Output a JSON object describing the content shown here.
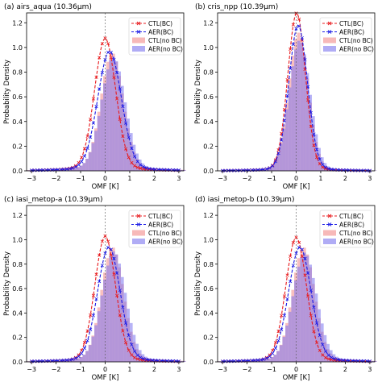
{
  "figure": {
    "x_axis_label": "OMF [K]",
    "y_axis_label": "Probability Density"
  },
  "legend_entries": [
    {
      "label": "CTL(BC)",
      "kind": "line",
      "color": "#e8191c",
      "marker": "x"
    },
    {
      "label": "AER(BC)",
      "kind": "line",
      "color": "#1a1ae6",
      "marker": "x"
    },
    {
      "label": "CTL(no BC)",
      "kind": "patch",
      "color": "#f28a8a"
    },
    {
      "label": "AER(no BC)",
      "kind": "patch",
      "color": "#7b74ee"
    }
  ],
  "chart_data": [
    {
      "type": "bar",
      "title": "(a) airs_aqua (10.36μm)",
      "xlabel": "OMF [K]",
      "ylabel": "Probability Density",
      "xlim": [
        -3.2,
        3.2
      ],
      "ylim": [
        0,
        1.28
      ],
      "xticks": [
        -3,
        -2,
        -1,
        0,
        1,
        2,
        3
      ],
      "yticks": [
        0.0,
        0.2,
        0.4,
        0.6,
        0.8,
        1.0,
        1.2
      ],
      "vline_x": 0,
      "legend_position": "top-right",
      "series": [
        {
          "name": "CTL(BC)",
          "kind": "line",
          "center": 0.0,
          "peak": 1.02,
          "width": 0.43,
          "tail": 0.055,
          "tail_width": 1.2
        },
        {
          "name": "AER(BC)",
          "kind": "line",
          "center": 0.18,
          "peak": 0.92,
          "width": 0.48,
          "tail": 0.05,
          "tail_width": 1.3
        },
        {
          "name": "CTL(no BC)",
          "kind": "hist",
          "center": 0.28,
          "peak": 0.9,
          "width": 0.45,
          "tail": 0.06,
          "tail_width": 1.4
        },
        {
          "name": "AER(no BC)",
          "kind": "hist",
          "center": 0.33,
          "peak": 0.87,
          "width": 0.48,
          "tail": 0.055,
          "tail_width": 1.4
        }
      ]
    },
    {
      "type": "bar",
      "title": "(b) cris_npp (10.39μm)",
      "xlabel": "OMF [K]",
      "ylabel": "Probability Density",
      "xlim": [
        -3.2,
        3.2
      ],
      "ylim": [
        0,
        1.28
      ],
      "xticks": [
        -3,
        -2,
        -1,
        0,
        1,
        2,
        3
      ],
      "yticks": [
        0.0,
        0.2,
        0.4,
        0.6,
        0.8,
        1.0,
        1.2
      ],
      "vline_x": 0,
      "legend_position": "top-right",
      "series": [
        {
          "name": "CTL(BC)",
          "kind": "line",
          "center": 0.02,
          "peak": 1.24,
          "width": 0.36,
          "tail": 0.04,
          "tail_width": 1.0
        },
        {
          "name": "AER(BC)",
          "kind": "line",
          "center": 0.08,
          "peak": 1.14,
          "width": 0.38,
          "tail": 0.04,
          "tail_width": 1.0
        },
        {
          "name": "CTL(no BC)",
          "kind": "hist",
          "center": 0.1,
          "peak": 1.08,
          "width": 0.4,
          "tail": 0.04,
          "tail_width": 1.1
        },
        {
          "name": "AER(no BC)",
          "kind": "hist",
          "center": 0.14,
          "peak": 1.02,
          "width": 0.42,
          "tail": 0.04,
          "tail_width": 1.1
        }
      ]
    },
    {
      "type": "bar",
      "title": "(c) iasi_metop-a (10.39μm)",
      "xlabel": "OMF [K]",
      "ylabel": "Probability Density",
      "xlim": [
        -3.2,
        3.2
      ],
      "ylim": [
        0,
        1.28
      ],
      "xticks": [
        -3,
        -2,
        -1,
        0,
        1,
        2,
        3
      ],
      "yticks": [
        0.0,
        0.2,
        0.4,
        0.6,
        0.8,
        1.0,
        1.2
      ],
      "vline_x": 0,
      "legend_position": "top-right",
      "series": [
        {
          "name": "CTL(BC)",
          "kind": "line",
          "center": 0.0,
          "peak": 0.98,
          "width": 0.42,
          "tail": 0.05,
          "tail_width": 1.2
        },
        {
          "name": "AER(BC)",
          "kind": "line",
          "center": 0.15,
          "peak": 0.89,
          "width": 0.46,
          "tail": 0.05,
          "tail_width": 1.3
        },
        {
          "name": "CTL(no BC)",
          "kind": "hist",
          "center": 0.3,
          "peak": 0.88,
          "width": 0.45,
          "tail": 0.06,
          "tail_width": 1.4
        },
        {
          "name": "AER(no BC)",
          "kind": "hist",
          "center": 0.35,
          "peak": 0.85,
          "width": 0.48,
          "tail": 0.055,
          "tail_width": 1.4
        }
      ]
    },
    {
      "type": "bar",
      "title": "(d) iasi_metop-b (10.39μm)",
      "xlabel": "OMF [K]",
      "ylabel": "Probability Density",
      "xlim": [
        -3.2,
        3.2
      ],
      "ylim": [
        0,
        1.28
      ],
      "xticks": [
        -3,
        -2,
        -1,
        0,
        1,
        2,
        3
      ],
      "yticks": [
        0.0,
        0.2,
        0.4,
        0.6,
        0.8,
        1.0,
        1.2
      ],
      "vline_x": 0,
      "legend_position": "top-right",
      "series": [
        {
          "name": "CTL(BC)",
          "kind": "line",
          "center": 0.0,
          "peak": 0.97,
          "width": 0.42,
          "tail": 0.05,
          "tail_width": 1.2
        },
        {
          "name": "AER(BC)",
          "kind": "line",
          "center": 0.15,
          "peak": 0.89,
          "width": 0.46,
          "tail": 0.05,
          "tail_width": 1.3
        },
        {
          "name": "CTL(no BC)",
          "kind": "hist",
          "center": 0.3,
          "peak": 0.88,
          "width": 0.45,
          "tail": 0.06,
          "tail_width": 1.4
        },
        {
          "name": "AER(no BC)",
          "kind": "hist",
          "center": 0.35,
          "peak": 0.84,
          "width": 0.48,
          "tail": 0.055,
          "tail_width": 1.4
        }
      ]
    }
  ]
}
